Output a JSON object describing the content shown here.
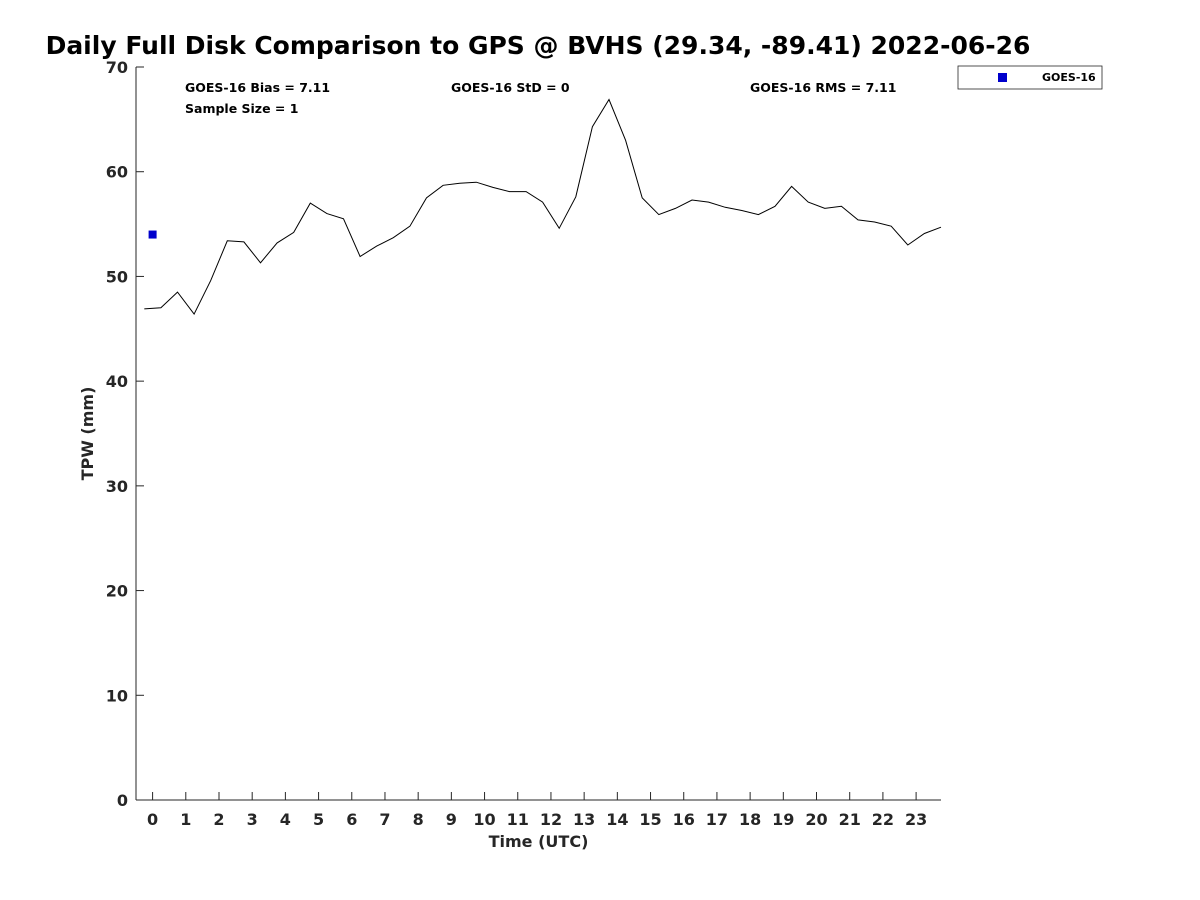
{
  "chart_data": {
    "type": "line",
    "title": "Daily Full Disk Comparison to GPS @ BVHS (29.34, -89.41) 2022-06-26",
    "xlabel": "Time (UTC)",
    "ylabel": "TPW (mm)",
    "xlim": [
      -0.5,
      23.75
    ],
    "ylim": [
      0,
      70
    ],
    "x_ticks": [
      0,
      1,
      2,
      3,
      4,
      5,
      6,
      7,
      8,
      9,
      10,
      11,
      12,
      13,
      14,
      15,
      16,
      17,
      18,
      19,
      20,
      21,
      22,
      23
    ],
    "x_tick_labels": [
      "0",
      "1",
      "2",
      "3",
      "4",
      "5",
      "6",
      "7",
      "8",
      "9",
      "10",
      "11",
      "12",
      "13",
      "14",
      "15",
      "16",
      "17",
      "18",
      "19",
      "20",
      "21",
      "22",
      "23"
    ],
    "y_ticks": [
      0,
      10,
      20,
      30,
      40,
      50,
      60,
      70
    ],
    "y_tick_labels": [
      "0",
      "10",
      "20",
      "30",
      "40",
      "50",
      "60",
      "70"
    ],
    "grid": false,
    "legend": {
      "placement": "top-right-outside",
      "entries": [
        "GOES-16"
      ]
    },
    "stats": {
      "bias": "GOES-16 Bias = 7.11",
      "std": "GOES-16 StD = 0",
      "rms": "GOES-16 RMS = 7.11",
      "sample_size": "Sample Size = 1"
    },
    "series": [
      {
        "kind": "line",
        "color": "#000000",
        "x": [
          -0.25,
          0.25,
          0.75,
          1.25,
          1.75,
          2.25,
          2.75,
          3.25,
          3.75,
          4.25,
          4.75,
          5.25,
          5.75,
          6.25,
          6.75,
          7.25,
          7.75,
          8.25,
          8.75,
          9.25,
          9.75,
          10.25,
          10.75,
          11.25,
          11.75,
          12.25,
          12.75,
          13.25,
          13.75,
          14.25,
          14.75,
          15.25,
          15.75,
          16.25,
          16.75,
          17.25,
          17.75,
          18.25,
          18.75,
          19.25,
          19.75,
          20.25,
          20.75,
          21.25,
          21.75,
          22.25,
          22.75,
          23.25,
          23.75
        ],
        "y": [
          46.9,
          47.0,
          48.5,
          46.4,
          49.6,
          53.4,
          53.3,
          51.3,
          53.2,
          54.2,
          57.0,
          56.0,
          55.5,
          51.9,
          52.9,
          53.7,
          54.8,
          57.5,
          58.7,
          58.9,
          59.0,
          58.5,
          58.1,
          58.1,
          57.1,
          54.6,
          57.6,
          64.3,
          66.9,
          63.0,
          57.5,
          55.9,
          56.5,
          57.3,
          57.1,
          56.6,
          56.3,
          55.9,
          56.7,
          58.6,
          57.1,
          56.5,
          56.7,
          55.4,
          55.2,
          54.8,
          53.0,
          54.1,
          54.7
        ]
      },
      {
        "name": "GOES-16",
        "kind": "scatter",
        "color": "#0000cc",
        "x": [
          0.0
        ],
        "y": [
          54.0
        ]
      }
    ]
  }
}
